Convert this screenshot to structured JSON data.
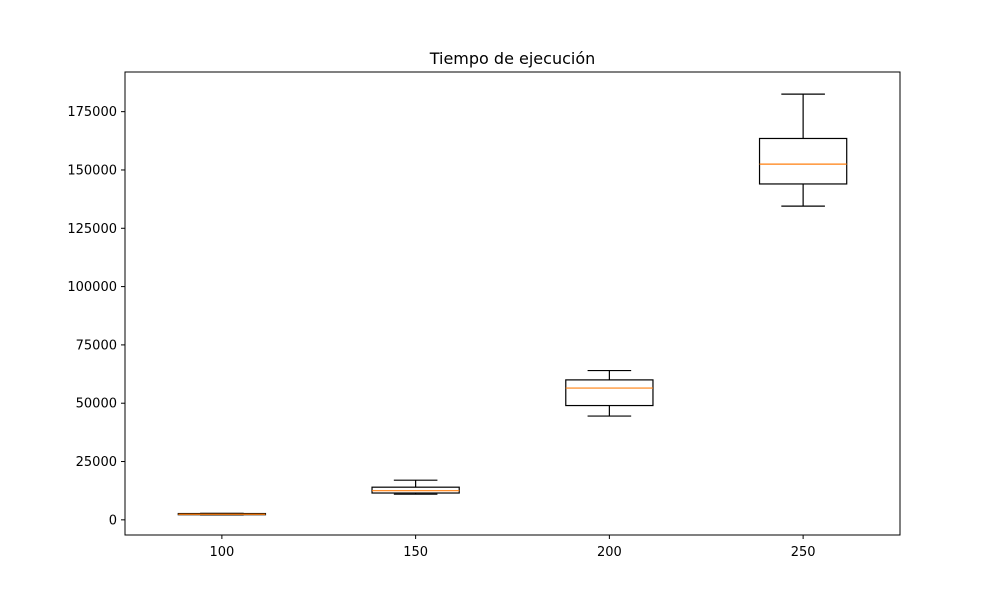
{
  "chart_data": {
    "type": "boxplot",
    "title": "Tiempo de ejecución",
    "xlabel": "",
    "ylabel": "",
    "categories": [
      "100",
      "150",
      "200",
      "250"
    ],
    "boxes": [
      {
        "whisker_low": 2100,
        "q1": 2200,
        "median": 2400,
        "q3": 2700,
        "whisker_high": 2800
      },
      {
        "whisker_low": 11000,
        "q1": 11500,
        "median": 12500,
        "q3": 14000,
        "whisker_high": 17000
      },
      {
        "whisker_low": 44500,
        "q1": 49000,
        "median": 56500,
        "q3": 60000,
        "whisker_high": 64000
      },
      {
        "whisker_low": 134500,
        "q1": 144000,
        "median": 152500,
        "q3": 163500,
        "whisker_high": 182500
      }
    ],
    "yticks": [
      0,
      25000,
      50000,
      75000,
      100000,
      125000,
      150000,
      175000
    ],
    "ylim": [
      -6500,
      192000
    ],
    "grid": false,
    "colors": {
      "box": "#000000",
      "median": "#ff7f0e",
      "axes": "#000000",
      "background": "#ffffff"
    }
  }
}
